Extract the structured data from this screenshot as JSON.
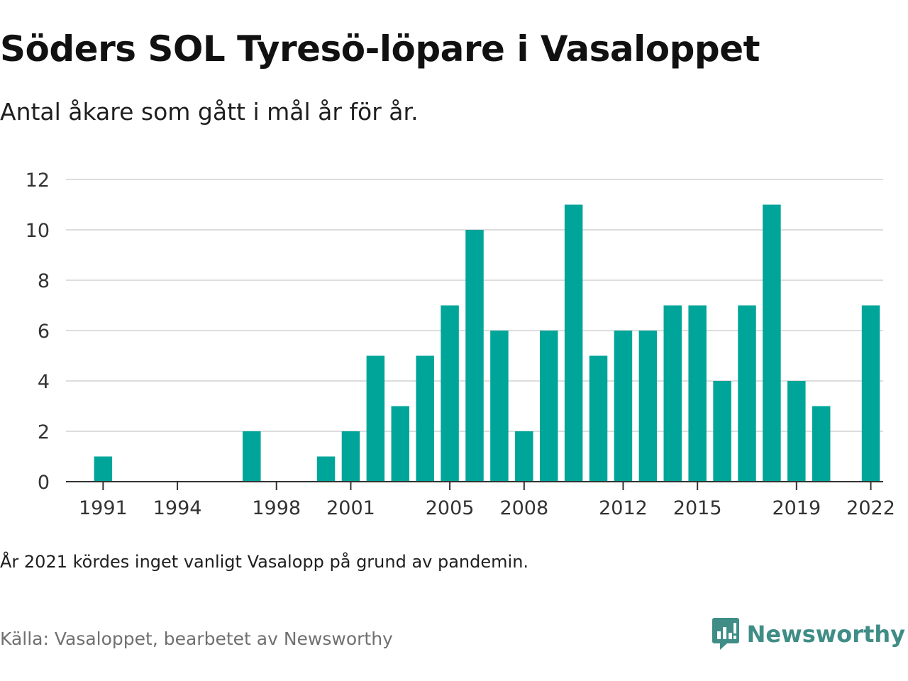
{
  "header": {
    "title": "Söders SOL Tyresö-löpare i Vasaloppet",
    "subtitle": "Antal åkare som gått i mål år för år."
  },
  "chart_data": {
    "type": "bar",
    "categories": [
      "1990",
      "1991",
      "1992",
      "1993",
      "1994",
      "1995",
      "1996",
      "1997",
      "1998",
      "1999",
      "2000",
      "2001",
      "2002",
      "2003",
      "2004",
      "2005",
      "2006",
      "2007",
      "2008",
      "2009",
      "2010",
      "2011",
      "2012",
      "2013",
      "2014",
      "2015",
      "2016",
      "2017",
      "2018",
      "2019",
      "2020",
      "2021",
      "2022"
    ],
    "values": [
      null,
      1,
      0,
      0,
      0,
      0,
      0,
      2,
      0,
      0,
      1,
      2,
      5,
      3,
      5,
      7,
      10,
      6,
      2,
      6,
      11,
      5,
      6,
      6,
      7,
      7,
      4,
      7,
      11,
      4,
      3,
      null,
      7
    ],
    "x_tick_labels": [
      "1991",
      "1994",
      "1998",
      "2001",
      "2005",
      "2008",
      "2012",
      "2015",
      "2019",
      "2022"
    ],
    "y_ticks": [
      0,
      2,
      4,
      6,
      8,
      10,
      12
    ],
    "ylim": [
      0,
      12
    ],
    "xlabel": "",
    "ylabel": "",
    "grid": true,
    "bar_color": "#00a59a",
    "grid_color": "#dddddd",
    "axis_color": "#333333"
  },
  "footer": {
    "note": "År 2021 kördes inget vanligt Vasalopp på grund av pandemin.",
    "source": "Källa: Vasaloppet, bearbetet av Newsworthy",
    "brand_name": "Newsworthy",
    "brand_icon": "newsworthy-logo-icon"
  }
}
